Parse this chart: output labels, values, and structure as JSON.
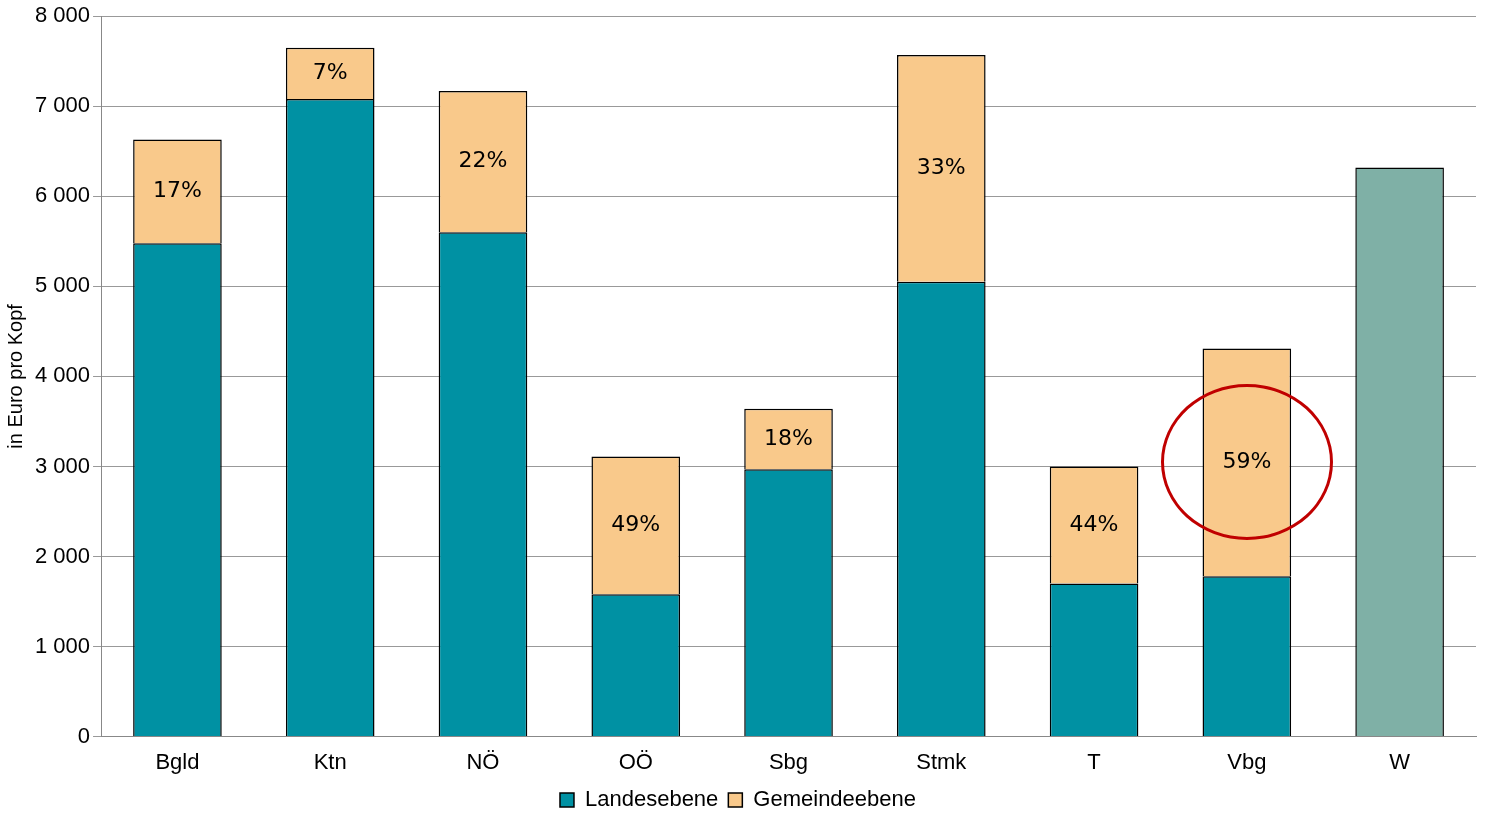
{
  "chart_data": {
    "type": "bar",
    "stacked": true,
    "ylabel": "in Euro pro Kopf",
    "categories": [
      "Bgld",
      "Ktn",
      "NÖ",
      "OÖ",
      "Sbg",
      "Stmk",
      "T",
      "Vbg",
      "W"
    ],
    "series": [
      {
        "name": "Landesebene",
        "color": "#0091a3",
        "values": [
          5480,
          7080,
          5600,
          1580,
          2970,
          5050,
          1700,
          1780,
          null
        ]
      },
      {
        "name": "Gemeindeebene",
        "color": "#f9c98b",
        "values": [
          1150,
          570,
          1570,
          1530,
          670,
          2520,
          1300,
          2530,
          null
        ]
      },
      {
        "color": "#7fb0a6",
        "values": [
          null,
          null,
          null,
          null,
          null,
          null,
          null,
          null,
          6320
        ]
      }
    ],
    "ylim": [
      0,
      8000
    ],
    "yticks": [
      {
        "value": 0,
        "label": "0"
      },
      {
        "value": 1000,
        "label": "1 000"
      },
      {
        "value": 2000,
        "label": "2 000"
      },
      {
        "value": 3000,
        "label": "3 000"
      },
      {
        "value": 4000,
        "label": "4 000"
      },
      {
        "value": 5000,
        "label": "5 000"
      },
      {
        "value": 6000,
        "label": "6 000"
      },
      {
        "value": 7000,
        "label": "7 000"
      },
      {
        "value": 8000,
        "label": "8 000"
      }
    ],
    "grid": "y",
    "legend": "bottom",
    "annotations": [
      "17%",
      "7%",
      "22%",
      "49%",
      "18%",
      "33%",
      "44%",
      "59%"
    ]
  }
}
